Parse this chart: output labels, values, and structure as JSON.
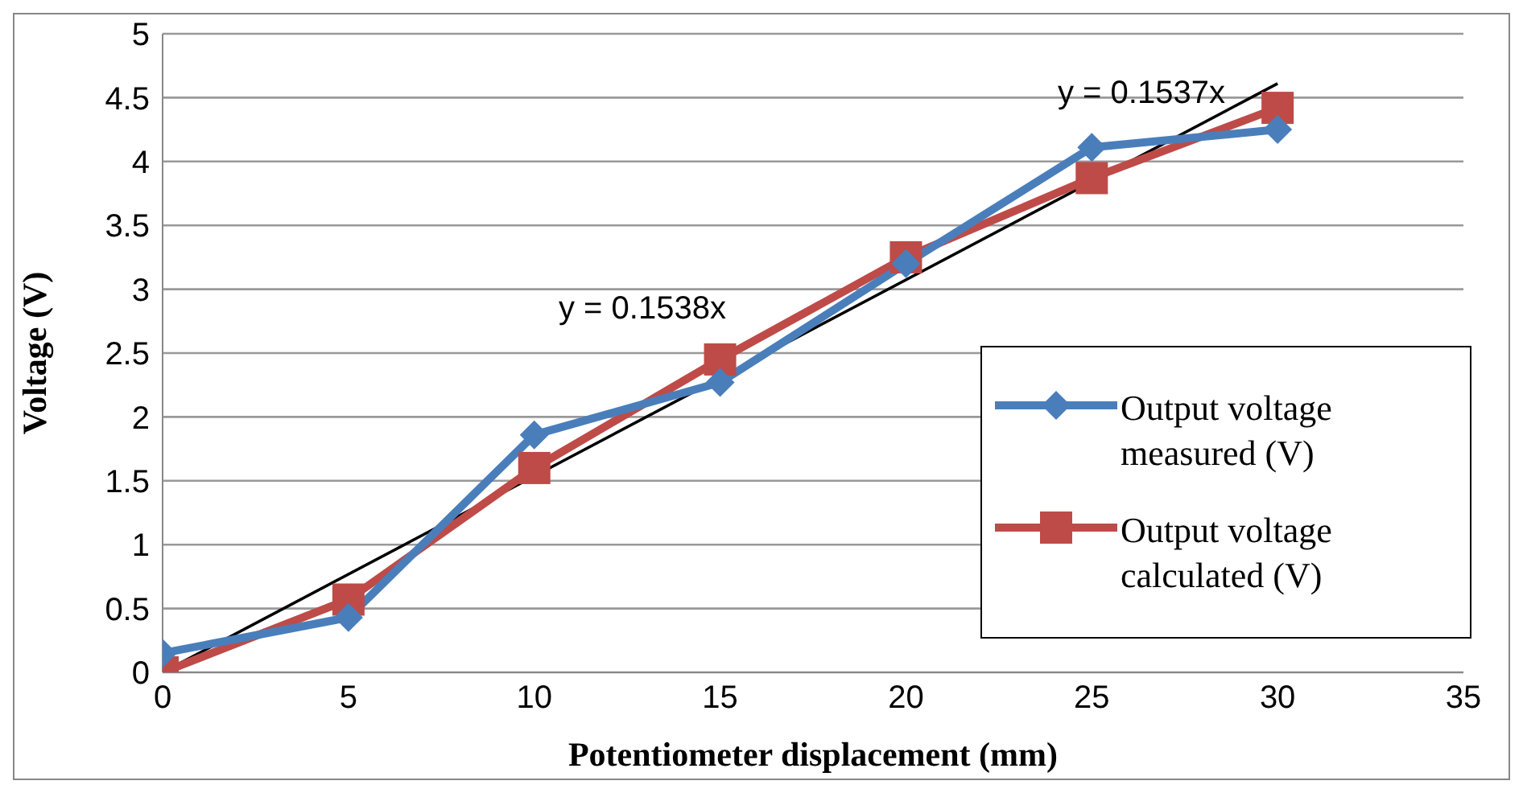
{
  "chart_data": {
    "type": "line",
    "xlabel": "Potentiometer displacement (mm)",
    "ylabel": "Voltage (V)",
    "xlim": [
      0,
      35
    ],
    "xticks": [
      0,
      5,
      10,
      15,
      20,
      25,
      30,
      35
    ],
    "ylim": [
      0,
      5
    ],
    "yticks": [
      0,
      0.5,
      1,
      1.5,
      2,
      2.5,
      3,
      3.5,
      4,
      4.5,
      5
    ],
    "grid": "y",
    "legend": "right",
    "series": [
      {
        "name": "Output voltage measured (V)",
        "color": "#4a7ebb",
        "marker": "diamond",
        "x": [
          0,
          5,
          10,
          15,
          20,
          25,
          30
        ],
        "values": [
          0.15,
          0.43,
          1.86,
          2.27,
          3.2,
          4.11,
          4.25
        ]
      },
      {
        "name": "Output voltage calculated (V)",
        "color": "#be4b48",
        "marker": "square",
        "x": [
          0,
          5,
          10,
          15,
          20,
          25,
          30
        ],
        "values": [
          0,
          0.57,
          1.6,
          2.45,
          3.25,
          3.87,
          4.42
        ]
      },
      {
        "type": "line",
        "color": "#000000",
        "marker": "none",
        "x": [
          0,
          30
        ],
        "values": [
          0,
          4.61
        ]
      }
    ],
    "annotations": [
      "y = 0.1538x",
      "y = 0.1537x"
    ]
  }
}
